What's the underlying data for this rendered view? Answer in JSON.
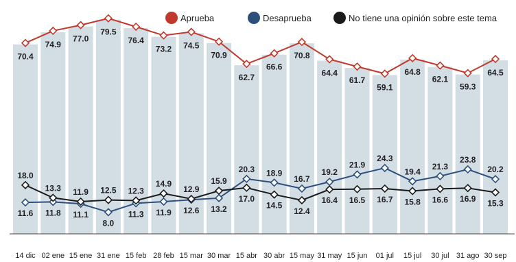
{
  "chart_data": {
    "type": "line",
    "categories": [
      "14 dic",
      "02 ene",
      "15 ene",
      "31 ene",
      "15 feb",
      "28 feb",
      "15 mar",
      "30 mar",
      "15 abr",
      "30 abr",
      "15 may",
      "31 may",
      "15 jun",
      "01 jul",
      "15 jul",
      "30 jul",
      "31 ago",
      "30 sep"
    ],
    "series": [
      {
        "name": "Aprueba",
        "color": "#c0392b",
        "marker": "diamond-white",
        "values": [
          70.4,
          74.9,
          77.0,
          79.5,
          76.4,
          73.2,
          74.5,
          70.9,
          62.7,
          66.6,
          70.8,
          64.4,
          61.7,
          59.1,
          64.8,
          62.1,
          59.3,
          64.5
        ]
      },
      {
        "name": "Desaprueba",
        "color": "#2c4f7c",
        "marker": "diamond-white",
        "values": [
          11.6,
          11.8,
          11.1,
          8.0,
          11.3,
          11.9,
          12.6,
          13.2,
          20.3,
          18.9,
          16.7,
          19.2,
          21.9,
          24.3,
          19.4,
          21.3,
          23.8,
          20.2
        ]
      },
      {
        "name": "No tiene una opinión sobre este tema",
        "color": "#1a1a1a",
        "marker": "diamond-white",
        "values": [
          18.0,
          13.3,
          11.9,
          12.5,
          12.3,
          14.9,
          12.9,
          15.9,
          17.0,
          14.5,
          12.4,
          16.4,
          16.5,
          16.7,
          15.8,
          16.6,
          16.9,
          15.3
        ]
      }
    ],
    "bars": {
      "series_ref": "Aprueba",
      "color": "#d3dde4"
    },
    "legend": "top-right",
    "grid": false,
    "ylim": [
      0,
      85
    ]
  }
}
